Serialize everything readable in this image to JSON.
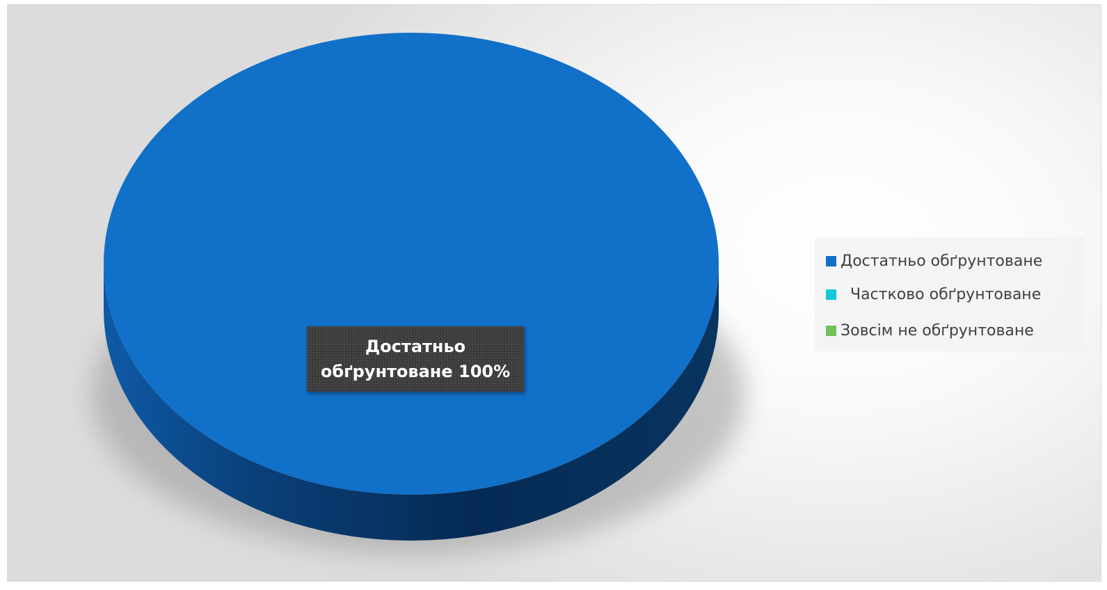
{
  "chart_data": {
    "type": "pie",
    "style": "3d",
    "title": "",
    "categories": [
      "Достатньо обґрунтоване",
      "  Частково обґрунтоване",
      "Зовсім не обґрунтоване"
    ],
    "values": [
      100,
      0,
      0
    ],
    "unit": "%",
    "colors": [
      "#1170C8",
      "#13C8D8",
      "#70C15A"
    ],
    "data_labels": [
      {
        "category_index": 0,
        "line1": "Достатньо",
        "line2": "обґрунтоване 100%"
      }
    ],
    "legend": {
      "position": "right",
      "items": [
        {
          "label": "Достатньо обґрунтоване",
          "color": "#1170C8"
        },
        {
          "label": "  Частково обґрунтоване",
          "color": "#13C8D8"
        },
        {
          "label": "Зовсім не обґрунтоване",
          "color": "#70C15A"
        }
      ]
    }
  }
}
